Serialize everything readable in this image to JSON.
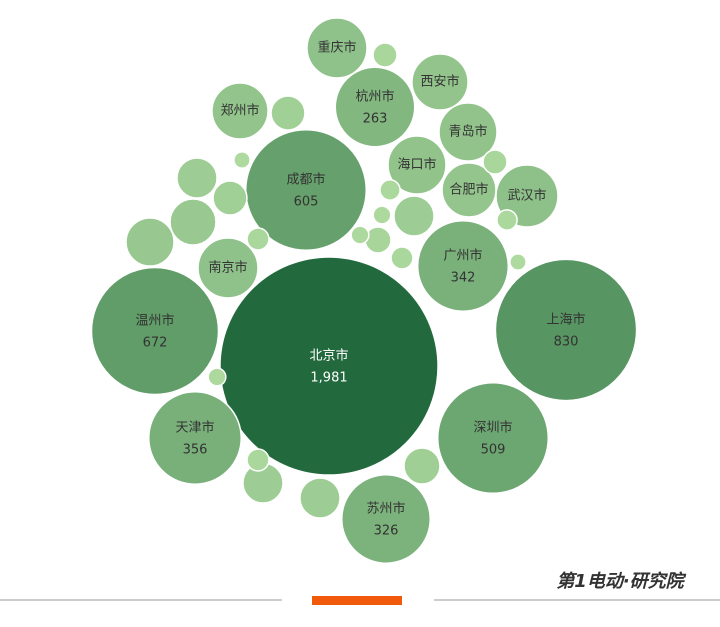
{
  "chart_data": {
    "type": "packed_bubble",
    "categories": [
      "北京市",
      "上海市",
      "温州市",
      "成都市",
      "深圳市",
      "天津市",
      "广州市",
      "苏州市",
      "杭州市",
      "重庆市",
      "郑州市",
      "西安市",
      "青岛市",
      "海口市",
      "合肥市",
      "武汉市",
      "南京市",
      null,
      null,
      null,
      null,
      null,
      null,
      null,
      null,
      null,
      null,
      null,
      null,
      null,
      null,
      null,
      null,
      null,
      null,
      null,
      null,
      null,
      null
    ],
    "values": [
      1981,
      830,
      672,
      605,
      509,
      356,
      342,
      326,
      263,
      150,
      131,
      131,
      140,
      140,
      121,
      160,
      150,
      24,
      48,
      67,
      48,
      88,
      96,
      67,
      67,
      54,
      24,
      28,
      20,
      17,
      67,
      20,
      20,
      13,
      17,
      11,
      13,
      11,
      13
    ],
    "value_labels": [
      "1,981",
      "830",
      "672",
      "605",
      "509",
      "356",
      "342",
      "326",
      "263",
      null,
      null,
      null,
      null,
      null,
      null,
      null,
      null,
      null,
      null,
      null,
      null,
      null,
      null,
      null,
      null,
      null,
      null,
      null,
      null,
      null,
      null,
      null,
      null,
      null,
      null,
      null,
      null,
      null,
      null
    ],
    "color_scale": [
      "#b9e3a7",
      "#226a3d"
    ],
    "watermark": "第1电动·研究院"
  }
}
